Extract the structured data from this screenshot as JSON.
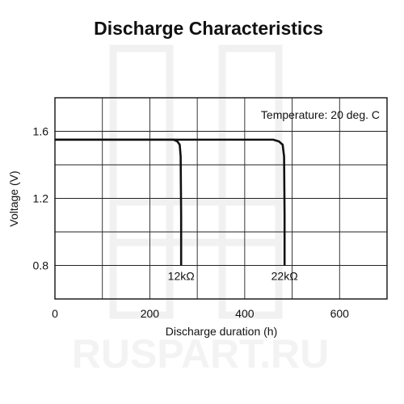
{
  "chart_data": {
    "type": "line",
    "title": "Discharge Characteristics",
    "xlabel": "Discharge duration (h)",
    "ylabel": "Voltage (V)",
    "xlim": [
      0,
      700
    ],
    "ylim": [
      0.6,
      1.8
    ],
    "x_ticks": [
      0,
      200,
      400,
      600
    ],
    "x_tick_labels": [
      "0",
      "200",
      "400",
      "600"
    ],
    "y_ticks": [
      0.8,
      1.2,
      1.6
    ],
    "y_tick_labels": [
      "0.8",
      "1.2",
      "1.6"
    ],
    "grid": true,
    "annotation": "Temperature: 20 deg. C",
    "series": [
      {
        "name": "12kΩ",
        "x": [
          0,
          100,
          200,
          250,
          258,
          263,
          265,
          266,
          266
        ],
        "y": [
          1.55,
          1.55,
          1.55,
          1.55,
          1.54,
          1.52,
          1.45,
          1.1,
          0.8
        ]
      },
      {
        "name": "22kΩ",
        "x": [
          0,
          100,
          200,
          300,
          400,
          460,
          472,
          480,
          483,
          484,
          484
        ],
        "y": [
          1.55,
          1.55,
          1.55,
          1.55,
          1.55,
          1.55,
          1.54,
          1.52,
          1.45,
          1.1,
          0.8
        ]
      }
    ]
  },
  "watermark": "RUSPART.RU"
}
